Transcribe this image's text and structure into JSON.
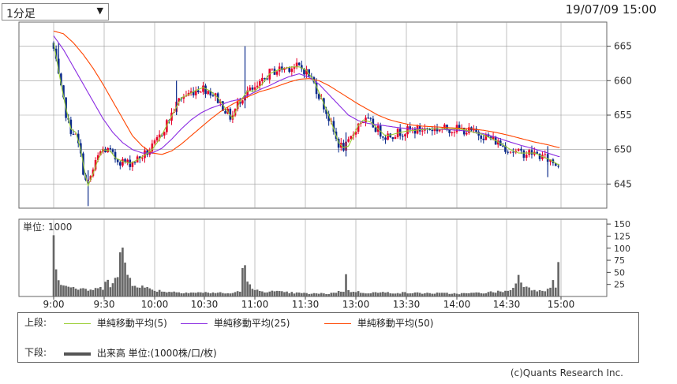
{
  "header": {
    "period_select": "1分足",
    "period_arrow": "▼",
    "timestamp": "19/07/09 15:00"
  },
  "chart_data": [
    {
      "type": "candlestick",
      "panel": "upper",
      "y_ticks": [
        645,
        650,
        655,
        660,
        665
      ],
      "ylim": [
        641.5,
        668.5
      ],
      "x_ticks": [
        "9:00",
        "9:30",
        "10:00",
        "10:30",
        "11:00",
        "11:30",
        "13:00",
        "13:30",
        "14:00",
        "14:30",
        "15:00"
      ],
      "price_path": [
        [
          0,
          665.5
        ],
        [
          1,
          663.5
        ],
        [
          3,
          659.5
        ],
        [
          5,
          656.0
        ],
        [
          7,
          653.0
        ],
        [
          9,
          652.5
        ],
        [
          11,
          650.0
        ],
        [
          13,
          646.0
        ],
        [
          14,
          644.8
        ],
        [
          16,
          646.5
        ],
        [
          18,
          648.5
        ],
        [
          20,
          650.0
        ],
        [
          23,
          649.8
        ],
        [
          25,
          648.8
        ],
        [
          28,
          648.3
        ],
        [
          31,
          648.0
        ],
        [
          34,
          648.5
        ],
        [
          37,
          649.2
        ],
        [
          40,
          650.0
        ],
        [
          43,
          651.5
        ],
        [
          46,
          653.5
        ],
        [
          49,
          655.5
        ],
        [
          52,
          657.5
        ],
        [
          55,
          658.0
        ],
        [
          58,
          658.6
        ],
        [
          61,
          659.0
        ],
        [
          64,
          658.5
        ],
        [
          67,
          657.5
        ],
        [
          70,
          656.0
        ],
        [
          73,
          654.5
        ],
        [
          76,
          657.0
        ],
        [
          79,
          658.5
        ],
        [
          82,
          658.5
        ],
        [
          85,
          659.5
        ],
        [
          88,
          661.0
        ],
        [
          91,
          661.5
        ],
        [
          94,
          661.8
        ],
        [
          97,
          662.0
        ],
        [
          100,
          662.0
        ],
        [
          103,
          661.5
        ],
        [
          106,
          660.0
        ],
        [
          109,
          657.5
        ],
        [
          112,
          655.0
        ],
        [
          114,
          653.0
        ],
        [
          116,
          651.0
        ],
        [
          118,
          650.3
        ],
        [
          120,
          650.5
        ],
        [
          122,
          652.0
        ],
        [
          124,
          653.5
        ],
        [
          126,
          654.3
        ],
        [
          129,
          654.0
        ],
        [
          132,
          653.0
        ],
        [
          135,
          652.0
        ],
        [
          138,
          652.2
        ],
        [
          141,
          652.5
        ],
        [
          144,
          652.7
        ],
        [
          147,
          652.8
        ],
        [
          150,
          652.9
        ],
        [
          153,
          653.0
        ],
        [
          156,
          653.0
        ],
        [
          159,
          653.0
        ],
        [
          162,
          653.0
        ],
        [
          165,
          653.0
        ],
        [
          168,
          652.8
        ],
        [
          171,
          652.5
        ],
        [
          174,
          652.3
        ],
        [
          177,
          651.8
        ],
        [
          180,
          651.3
        ],
        [
          183,
          650.7
        ],
        [
          186,
          650.0
        ],
        [
          189,
          649.5
        ],
        [
          192,
          649.5
        ],
        [
          195,
          649.5
        ],
        [
          198,
          649.0
        ],
        [
          201,
          648.5
        ],
        [
          204,
          647.8
        ]
      ],
      "ma5": [
        [
          0,
          665.5
        ],
        [
          1,
          663.5
        ],
        [
          3,
          659.5
        ],
        [
          5,
          656.0
        ],
        [
          7,
          653.0
        ],
        [
          9,
          652.5
        ],
        [
          11,
          650.0
        ],
        [
          13,
          646.0
        ],
        [
          14,
          644.8
        ],
        [
          16,
          646.5
        ],
        [
          18,
          648.5
        ],
        [
          20,
          650.0
        ],
        [
          23,
          649.8
        ],
        [
          25,
          648.8
        ],
        [
          28,
          648.3
        ],
        [
          31,
          648.0
        ],
        [
          34,
          648.5
        ],
        [
          37,
          649.2
        ],
        [
          40,
          650.0
        ],
        [
          43,
          651.5
        ],
        [
          46,
          653.5
        ],
        [
          49,
          655.5
        ],
        [
          52,
          657.5
        ],
        [
          55,
          658.0
        ],
        [
          58,
          658.6
        ],
        [
          61,
          659.0
        ],
        [
          64,
          658.5
        ],
        [
          67,
          657.5
        ],
        [
          70,
          656.0
        ],
        [
          73,
          654.5
        ],
        [
          76,
          657.0
        ],
        [
          79,
          658.5
        ],
        [
          82,
          658.5
        ],
        [
          85,
          659.5
        ],
        [
          88,
          661.0
        ],
        [
          91,
          661.5
        ],
        [
          94,
          661.8
        ],
        [
          97,
          662.0
        ],
        [
          100,
          662.0
        ],
        [
          103,
          661.5
        ],
        [
          106,
          660.0
        ],
        [
          109,
          657.5
        ],
        [
          112,
          655.0
        ],
        [
          114,
          653.0
        ],
        [
          116,
          651.0
        ],
        [
          118,
          650.3
        ],
        [
          120,
          650.5
        ],
        [
          122,
          652.0
        ],
        [
          124,
          653.5
        ],
        [
          126,
          654.3
        ],
        [
          129,
          654.0
        ],
        [
          132,
          653.0
        ],
        [
          135,
          652.0
        ],
        [
          138,
          652.2
        ],
        [
          141,
          652.5
        ],
        [
          144,
          652.7
        ],
        [
          147,
          652.8
        ],
        [
          150,
          652.9
        ],
        [
          153,
          653.0
        ],
        [
          156,
          653.0
        ],
        [
          159,
          653.0
        ],
        [
          162,
          653.0
        ],
        [
          165,
          653.0
        ],
        [
          168,
          652.8
        ],
        [
          171,
          652.5
        ],
        [
          174,
          652.3
        ],
        [
          177,
          651.8
        ],
        [
          180,
          651.3
        ],
        [
          183,
          650.7
        ],
        [
          186,
          650.0
        ],
        [
          189,
          649.5
        ],
        [
          192,
          649.5
        ],
        [
          195,
          649.5
        ],
        [
          198,
          649.0
        ],
        [
          201,
          648.5
        ],
        [
          204,
          647.8
        ]
      ],
      "ma25": [
        [
          0,
          666.5
        ],
        [
          4,
          664.5
        ],
        [
          8,
          662.0
        ],
        [
          12,
          659.5
        ],
        [
          16,
          657.0
        ],
        [
          20,
          654.5
        ],
        [
          24,
          652.5
        ],
        [
          28,
          651.0
        ],
        [
          32,
          650.0
        ],
        [
          36,
          649.5
        ],
        [
          40,
          649.5
        ],
        [
          44,
          650.2
        ],
        [
          48,
          651.5
        ],
        [
          52,
          653.0
        ],
        [
          56,
          654.3
        ],
        [
          60,
          655.3
        ],
        [
          64,
          656.0
        ],
        [
          68,
          656.5
        ],
        [
          72,
          657.0
        ],
        [
          76,
          657.3
        ],
        [
          80,
          658.0
        ],
        [
          84,
          658.7
        ],
        [
          88,
          659.3
        ],
        [
          92,
          660.0
        ],
        [
          96,
          660.6
        ],
        [
          100,
          661.0
        ],
        [
          104,
          660.5
        ],
        [
          108,
          659.5
        ],
        [
          112,
          658.0
        ],
        [
          116,
          656.5
        ],
        [
          120,
          655.0
        ],
        [
          124,
          654.2
        ],
        [
          128,
          653.8
        ],
        [
          132,
          653.6
        ],
        [
          136,
          653.4
        ],
        [
          140,
          653.2
        ],
        [
          145,
          653.0
        ],
        [
          150,
          653.0
        ],
        [
          155,
          653.0
        ],
        [
          160,
          652.9
        ],
        [
          165,
          652.8
        ],
        [
          170,
          652.6
        ],
        [
          175,
          652.3
        ],
        [
          180,
          651.8
        ],
        [
          185,
          651.2
        ],
        [
          190,
          650.6
        ],
        [
          195,
          650.1
        ],
        [
          200,
          649.5
        ],
        [
          204,
          649.0
        ]
      ],
      "ma50": [
        [
          0,
          667.2
        ],
        [
          4,
          666.8
        ],
        [
          8,
          665.5
        ],
        [
          12,
          663.8
        ],
        [
          16,
          661.8
        ],
        [
          20,
          659.5
        ],
        [
          24,
          657.0
        ],
        [
          28,
          654.5
        ],
        [
          32,
          652.0
        ],
        [
          36,
          650.5
        ],
        [
          40,
          649.5
        ],
        [
          44,
          649.3
        ],
        [
          48,
          649.8
        ],
        [
          52,
          650.8
        ],
        [
          56,
          652.0
        ],
        [
          60,
          653.2
        ],
        [
          64,
          654.4
        ],
        [
          68,
          655.5
        ],
        [
          72,
          656.4
        ],
        [
          76,
          657.2
        ],
        [
          80,
          657.8
        ],
        [
          84,
          658.4
        ],
        [
          88,
          658.8
        ],
        [
          92,
          659.3
        ],
        [
          96,
          659.8
        ],
        [
          100,
          660.2
        ],
        [
          104,
          660.3
        ],
        [
          108,
          660.0
        ],
        [
          112,
          659.3
        ],
        [
          116,
          658.4
        ],
        [
          120,
          657.5
        ],
        [
          124,
          656.6
        ],
        [
          128,
          655.8
        ],
        [
          132,
          655.0
        ],
        [
          136,
          654.4
        ],
        [
          140,
          654.0
        ],
        [
          145,
          653.6
        ],
        [
          150,
          653.4
        ],
        [
          155,
          653.3
        ],
        [
          160,
          653.2
        ],
        [
          165,
          653.1
        ],
        [
          170,
          653.0
        ],
        [
          175,
          652.8
        ],
        [
          180,
          652.5
        ],
        [
          185,
          652.1
        ],
        [
          190,
          651.6
        ],
        [
          195,
          651.1
        ],
        [
          200,
          650.7
        ],
        [
          204,
          650.3
        ]
      ],
      "spikes": [
        {
          "x": 2,
          "low": 662.0,
          "high": 665.5
        },
        {
          "x": 14,
          "low": 641.8,
          "high": 647.0
        },
        {
          "x": 50,
          "low": 655.0,
          "high": 660.0
        },
        {
          "x": 78,
          "low": 656.0,
          "high": 665.0
        },
        {
          "x": 119,
          "low": 649.0,
          "high": 652.5
        },
        {
          "x": 200,
          "low": 646.0,
          "high": 650.5
        }
      ]
    },
    {
      "type": "bar",
      "panel": "lower",
      "unit_label": "単位: 1000",
      "y_ticks": [
        25,
        50,
        75,
        100,
        125,
        150
      ],
      "ylim": [
        0,
        160
      ],
      "volume_keyframes": [
        [
          0,
          152
        ],
        [
          1,
          70
        ],
        [
          2,
          34
        ],
        [
          4,
          25
        ],
        [
          8,
          18
        ],
        [
          12,
          14
        ],
        [
          16,
          14
        ],
        [
          20,
          18
        ],
        [
          21,
          36
        ],
        [
          22,
          44
        ],
        [
          23,
          24
        ],
        [
          24,
          28
        ],
        [
          25,
          36
        ],
        [
          26,
          35
        ],
        [
          27,
          80
        ],
        [
          28,
          108
        ],
        [
          29,
          70
        ],
        [
          30,
          45
        ],
        [
          32,
          28
        ],
        [
          36,
          20
        ],
        [
          40,
          14
        ],
        [
          46,
          10
        ],
        [
          56,
          8
        ],
        [
          66,
          8
        ],
        [
          72,
          6
        ],
        [
          76,
          12
        ],
        [
          77,
          50
        ],
        [
          78,
          84
        ],
        [
          79,
          26
        ],
        [
          82,
          12
        ],
        [
          90,
          10
        ],
        [
          96,
          8
        ],
        [
          104,
          6
        ],
        [
          112,
          6
        ],
        [
          118,
          12
        ],
        [
          119,
          40
        ],
        [
          120,
          12
        ],
        [
          126,
          8
        ],
        [
          136,
          8
        ],
        [
          150,
          7
        ],
        [
          166,
          6
        ],
        [
          176,
          8
        ],
        [
          186,
          12
        ],
        [
          188,
          28
        ],
        [
          189,
          46
        ],
        [
          190,
          34
        ],
        [
          192,
          18
        ],
        [
          196,
          14
        ],
        [
          200,
          14
        ],
        [
          202,
          28
        ],
        [
          203,
          22
        ],
        [
          204,
          64
        ]
      ]
    }
  ],
  "legend": {
    "upper_label": "上段:",
    "lower_label": "下段:",
    "ma5": {
      "label": "単純移動平均(5)",
      "color": "#9acd32"
    },
    "ma25": {
      "label": "単純移動平均(25)",
      "color": "#8a2be2"
    },
    "ma50": {
      "label": "単純移動平均(50)",
      "color": "#ff4500"
    },
    "volume": {
      "label": "出来高 単位:(1000株/口/枚)",
      "color": "#555555"
    }
  },
  "colors": {
    "up_candle": "#e8002a",
    "down_candle": "#0a2a8a",
    "volume_bar": "#666666",
    "grid": "#999999"
  },
  "footer": {
    "credit": "(c)Quants Research Inc."
  }
}
